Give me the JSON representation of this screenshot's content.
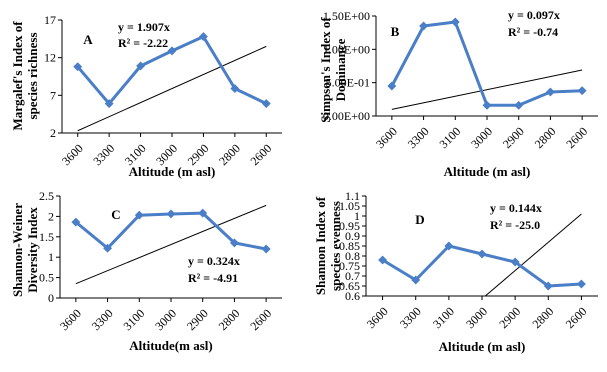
{
  "figure": {
    "palette": {
      "series": "#4A7EC7",
      "trend": "#000000",
      "axis": "#000000"
    }
  },
  "chart_data": [
    {
      "type": "line",
      "panel": "A",
      "categories": [
        "3600",
        "3300",
        "3100",
        "3000",
        "2900",
        "2800",
        "2600"
      ],
      "values": [
        10.8,
        5.9,
        10.9,
        12.9,
        14.8,
        7.9,
        5.9
      ],
      "trendline": {
        "equation": "y = 1.907x",
        "r2": "R² = -2.22",
        "x_values": [
          1,
          7
        ],
        "y_values": [
          2.3,
          13.5
        ]
      },
      "xlabel": "Altitude (m asl)",
      "ylabel_lines": [
        "Margalef's Index of",
        "species richness"
      ],
      "ylim": [
        2,
        17
      ],
      "yticks": [
        "2",
        "7",
        "12",
        "17"
      ],
      "yticks_numeric": [
        2,
        7,
        12,
        17
      ],
      "grid": false
    },
    {
      "type": "line",
      "panel": "B",
      "categories": [
        "3600",
        "3300",
        "3100",
        "3000",
        "2900",
        "2800",
        "2600"
      ],
      "values": [
        0.45,
        1.35,
        1.41,
        0.16,
        0.16,
        0.36,
        0.38
      ],
      "trendline": {
        "equation": "y = 0.097x",
        "r2": "R² = -0.74",
        "x_values": [
          1,
          7
        ],
        "y_values": [
          0.1,
          0.69
        ]
      },
      "xlabel": "Altitude (m asl)",
      "ylabel_lines": [
        "Simpson's Index of",
        "Dominance"
      ],
      "ylim": [
        0,
        1.5
      ],
      "yticks": [
        "0.00E+00",
        "5.00E-01",
        "1.00E+00",
        "1.50E+00"
      ],
      "yticks_numeric": [
        0,
        0.5,
        1.0,
        1.5
      ],
      "grid": false
    },
    {
      "type": "line",
      "panel": "C",
      "categories": [
        "3600",
        "3300",
        "3100",
        "3000",
        "2900",
        "2800",
        "2600"
      ],
      "values": [
        1.86,
        1.22,
        2.03,
        2.06,
        2.08,
        1.35,
        1.2
      ],
      "trendline": {
        "equation": "y = 0.324x",
        "r2": "R² = -4.91",
        "x_values": [
          1,
          7
        ],
        "y_values": [
          0.35,
          2.27
        ]
      },
      "xlabel": "Altitude(m asl)",
      "ylabel_lines": [
        "Shannon-Weiner",
        "Diversity Index"
      ],
      "ylim": [
        0,
        2.5
      ],
      "yticks": [
        "0",
        "0.5",
        "1",
        "1.5",
        "2",
        "2.5"
      ],
      "yticks_numeric": [
        0,
        0.5,
        1,
        1.5,
        2,
        2.5
      ],
      "grid": false
    },
    {
      "type": "line",
      "panel": "D",
      "categories": [
        "3600",
        "3300",
        "3100",
        "3000",
        "2900",
        "2800",
        "2600"
      ],
      "values": [
        0.78,
        0.68,
        0.85,
        0.81,
        0.77,
        0.65,
        0.66
      ],
      "trendline": {
        "equation": "y = 0.144x",
        "r2": "R² = -25.0",
        "x_values": [
          4.1,
          7
        ],
        "y_values": [
          0.6,
          1.01
        ]
      },
      "xlabel": "Altitude (m asl)",
      "ylabel_lines": [
        "Shannon Index of",
        "species evenness"
      ],
      "ylim": [
        0.6,
        1.1
      ],
      "yticks": [
        "0.6",
        "0.65",
        "0.7",
        "0.75",
        "0.8",
        "0.85",
        "0.9",
        "0.95",
        "1",
        "1.05",
        "1.1"
      ],
      "yticks_numeric": [
        0.6,
        0.65,
        0.7,
        0.75,
        0.8,
        0.85,
        0.9,
        0.95,
        1.0,
        1.05,
        1.1
      ],
      "grid": false
    }
  ]
}
